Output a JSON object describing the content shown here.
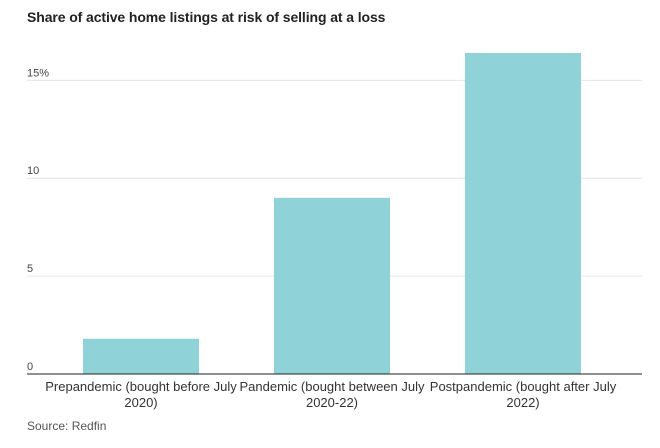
{
  "chart_data": {
    "type": "bar",
    "title": "Share of active home listings at risk of selling at a loss",
    "categories": [
      [
        "Prepandemic (bought before July",
        "2020)"
      ],
      [
        "Pandemic (bought between July",
        "2020-22)"
      ],
      [
        "Postpandemic (bought after July",
        "2022)"
      ]
    ],
    "values": [
      1.8,
      9.0,
      16.4
    ],
    "ylim": [
      0,
      16.5
    ],
    "yticks": [
      {
        "value": 0,
        "label": "0"
      },
      {
        "value": 5,
        "label": "5"
      },
      {
        "value": 10,
        "label": "10"
      },
      {
        "value": 15,
        "label": "15%"
      }
    ],
    "grid": true,
    "bar_color": "#8fd3d8",
    "source": "Source: Redfin"
  }
}
